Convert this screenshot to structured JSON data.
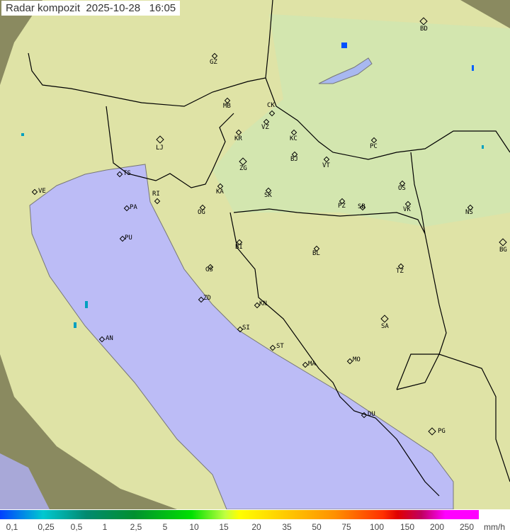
{
  "header": {
    "title": "Radar kompozit  2025-10-28   16:05"
  },
  "legend": {
    "unit": "mm/h",
    "ticks": [
      "0,1",
      "0,25",
      "0,5",
      "1",
      "2,5",
      "5",
      "10",
      "15",
      "20",
      "35",
      "50",
      "75",
      "100",
      "150",
      "200",
      "250"
    ],
    "colors": {
      "low": "#0040ff",
      "mid": "#00e000",
      "yellow": "#ffff00",
      "high": "#e00000",
      "max": "#ff00ff"
    }
  },
  "map": {
    "colors": {
      "sea": "#bcbcf6",
      "land": "#dfe6a8",
      "outside": "#8a8a60",
      "border": "#000000"
    },
    "cities": [
      "GZ",
      "MB",
      "CK",
      "VZ",
      "KR",
      "KC",
      "BJ",
      "ZG",
      "VT",
      "PC",
      "LJ",
      "TS",
      "VE",
      "RI",
      "PA",
      "OG",
      "KA",
      "SK",
      "PZ",
      "SB",
      "OS",
      "VK",
      "NS",
      "BD",
      "BG",
      "PU",
      "BI",
      "BL",
      "GS",
      "TZ",
      "ZD",
      "KN",
      "SI",
      "SA",
      "AN",
      "ST",
      "MA",
      "MO",
      "DU",
      "PG"
    ]
  }
}
